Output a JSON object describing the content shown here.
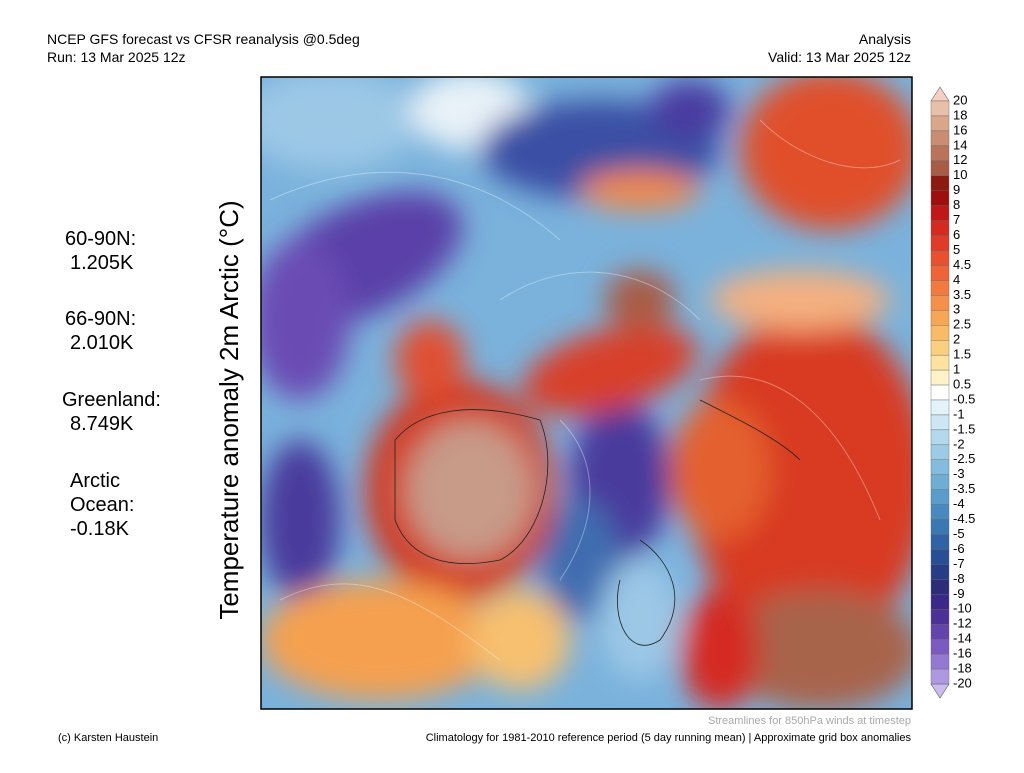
{
  "header": {
    "title": "NCEP GFS forecast vs CFSR reanalysis @0.5deg",
    "run": "Run: 13 Mar 2025 12z",
    "mode": "Analysis",
    "valid": "Valid: 13 Mar 2025 12z"
  },
  "side_label": "Temperature anomaly 2m Arctic (°C)",
  "stats": [
    {
      "label": [
        "60-90N:"
      ],
      "value": "1.205K"
    },
    {
      "label": [
        "66-90N:"
      ],
      "value": "2.010K"
    },
    {
      "label": [
        "Greenland:"
      ],
      "value": "8.749K"
    },
    {
      "label": [
        "Arctic",
        "Ocean:"
      ],
      "value": "-0.18K"
    }
  ],
  "colorbar": {
    "labels": [
      "20",
      "18",
      "16",
      "14",
      "12",
      "10",
      "9",
      "8",
      "7",
      "6",
      "5",
      "4.5",
      "4",
      "3.5",
      "3",
      "2.5",
      "2",
      "1.5",
      "1",
      "0.5",
      "-0.5",
      "-1",
      "-1.5",
      "-2",
      "-2.5",
      "-3",
      "-3.5",
      "-4",
      "-4.5",
      "-5",
      "-6",
      "-7",
      "-8",
      "-9",
      "-10",
      "-12",
      "-14",
      "-16",
      "-18",
      "-20"
    ],
    "colors": [
      "#f5d0c0",
      "#e8bfa8",
      "#d9a68a",
      "#c98d72",
      "#b8735a",
      "#a85c45",
      "#8b1a10",
      "#a00f0f",
      "#c01818",
      "#d42a20",
      "#e03a28",
      "#e85030",
      "#ee6438",
      "#f27a40",
      "#f5904a",
      "#f7a656",
      "#f9bb66",
      "#fbcf80",
      "#fde2a0",
      "#fef2c8",
      "#ffffff",
      "#e4f2fa",
      "#cce6f4",
      "#b4d9ee",
      "#9ccbe6",
      "#84bcdd",
      "#6eadd4",
      "#5a9cca",
      "#488abf",
      "#3a78b3",
      "#2f63a5",
      "#284e96",
      "#273c86",
      "#2d2c7a",
      "#3b2888",
      "#4c3098",
      "#6344ac",
      "#7a5cc0",
      "#9478d2",
      "#ae98e0",
      "#cbbcf0"
    ]
  },
  "footer": {
    "streamlines": "Streamlines for 850hPa winds at timestep",
    "credit": "(c) Karsten Haustein",
    "climatology": "Climatology for 1981-2010 reference period (5 day running mean) | Approximate grid box anomalies"
  }
}
